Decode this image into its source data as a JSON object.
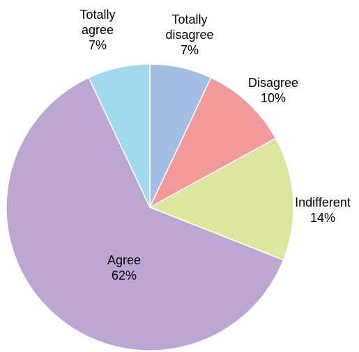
{
  "chart_data": {
    "type": "pie",
    "title": "",
    "start_angle_deg": 0,
    "direction": "clockwise",
    "slices": [
      {
        "label_lines": [
          "Totally",
          "disagree"
        ],
        "value": 7,
        "percent_label": "7%",
        "color": "#A4BDE3"
      },
      {
        "label_lines": [
          "Disagree"
        ],
        "value": 10,
        "percent_label": "10%",
        "color": "#F4999A"
      },
      {
        "label_lines": [
          "Indifferent"
        ],
        "value": 14,
        "percent_label": "14%",
        "color": "#DCE69E"
      },
      {
        "label_lines": [
          "Agree"
        ],
        "value": 62,
        "percent_label": "62%",
        "color": "#BEA6D2"
      },
      {
        "label_lines": [
          "Totally",
          "agree"
        ],
        "value": 7,
        "percent_label": "7%",
        "color": "#A0DAEC"
      }
    ]
  }
}
